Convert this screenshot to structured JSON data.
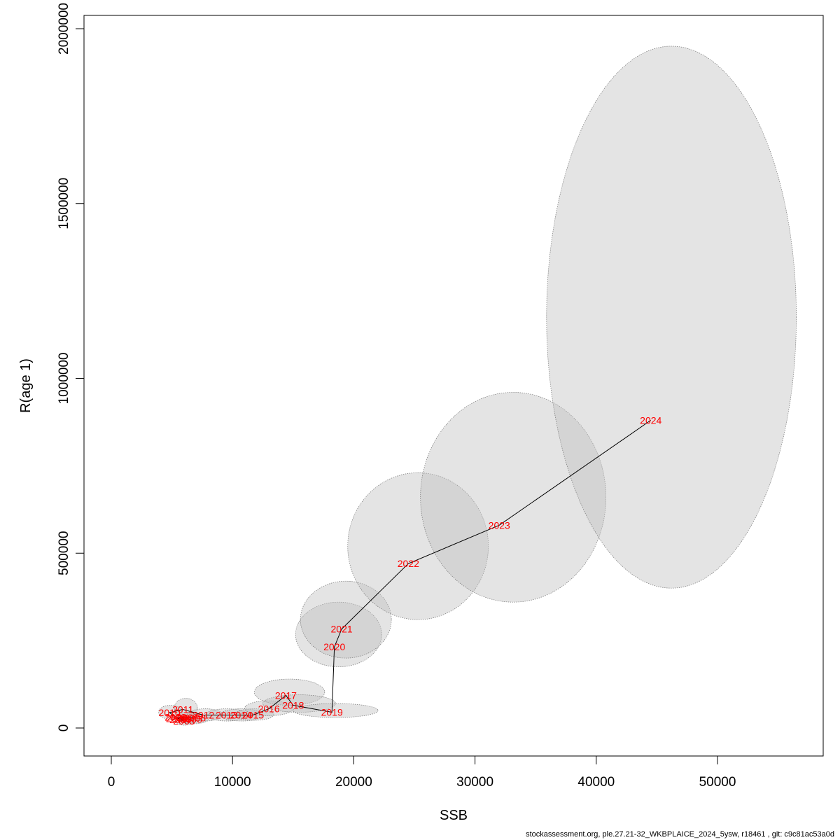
{
  "chart_data": {
    "type": "scatter",
    "title": "",
    "xlabel": "SSB",
    "ylabel": "R(age 1)",
    "xlim": [
      0,
      50000
    ],
    "ylim": [
      0,
      2000000
    ],
    "x_ticks": [
      "0",
      "10000",
      "20000",
      "30000",
      "40000",
      "50000"
    ],
    "y_ticks": [
      "0",
      "500000",
      "1000000",
      "1500000",
      "2000000"
    ],
    "grid": false,
    "legend": "none",
    "line_color": "#000000",
    "label_color": "#ff0000",
    "ellipse_fill": "#bebebe",
    "ellipse_stroke": "#777777",
    "points": [
      {
        "year": "2003",
        "ssb": 6000,
        "r": 20000
      },
      {
        "year": "2004",
        "ssb": 5700,
        "r": 24000
      },
      {
        "year": "2005",
        "ssb": 6600,
        "r": 25000
      },
      {
        "year": "2006",
        "ssb": 5400,
        "r": 27000
      },
      {
        "year": "2007",
        "ssb": 6300,
        "r": 30000
      },
      {
        "year": "2008",
        "ssb": 6900,
        "r": 29000
      },
      {
        "year": "2009",
        "ssb": 5300,
        "r": 31000
      },
      {
        "year": "2010",
        "ssb": 4800,
        "r": 44000
      },
      {
        "year": "2011",
        "ssb": 5900,
        "r": 53000
      },
      {
        "year": "2012",
        "ssb": 7600,
        "r": 37000
      },
      {
        "year": "2013",
        "ssb": 9500,
        "r": 37000
      },
      {
        "year": "2014",
        "ssb": 10700,
        "r": 37000
      },
      {
        "year": "2015",
        "ssb": 11700,
        "r": 37000
      },
      {
        "year": "2016",
        "ssb": 13000,
        "r": 55000
      },
      {
        "year": "2017",
        "ssb": 14400,
        "r": 93000
      },
      {
        "year": "2018",
        "ssb": 15000,
        "r": 65000
      },
      {
        "year": "2019",
        "ssb": 18200,
        "r": 45000
      },
      {
        "year": "2020",
        "ssb": 18400,
        "r": 232000
      },
      {
        "year": "2021",
        "ssb": 19000,
        "r": 283000
      },
      {
        "year": "2022",
        "ssb": 24500,
        "r": 470000
      },
      {
        "year": "2023",
        "ssb": 32000,
        "r": 580000
      },
      {
        "year": "2024",
        "ssb": 44500,
        "r": 880000
      }
    ],
    "confidence_ellipses": [
      {
        "year": "2003",
        "ssb_min": 5200,
        "ssb_max": 6900,
        "r_min": 8000,
        "r_max": 35000
      },
      {
        "year": "2005",
        "ssb_min": 5500,
        "ssb_max": 8000,
        "r_min": 12000,
        "r_max": 40000
      },
      {
        "year": "2007",
        "ssb_min": 5200,
        "ssb_max": 7600,
        "r_min": 15000,
        "r_max": 45000
      },
      {
        "year": "2010",
        "ssb_min": 3900,
        "ssb_max": 5900,
        "r_min": 25000,
        "r_max": 65000
      },
      {
        "year": "2011",
        "ssb_min": 5200,
        "ssb_max": 7100,
        "r_min": 30000,
        "r_max": 85000
      },
      {
        "year": "2012",
        "ssb_min": 6300,
        "ssb_max": 9200,
        "r_min": 20000,
        "r_max": 55000
      },
      {
        "year": "2013",
        "ssb_min": 7800,
        "ssb_max": 11300,
        "r_min": 20000,
        "r_max": 55000
      },
      {
        "year": "2014",
        "ssb_min": 9000,
        "ssb_max": 12500,
        "r_min": 20000,
        "r_max": 55000
      },
      {
        "year": "2015",
        "ssb_min": 10200,
        "ssb_max": 13400,
        "r_min": 22000,
        "r_max": 55000
      },
      {
        "year": "2016",
        "ssb_min": 11000,
        "ssb_max": 15000,
        "r_min": 35000,
        "r_max": 78000
      },
      {
        "year": "2017",
        "ssb_min": 11800,
        "ssb_max": 17600,
        "r_min": 65000,
        "r_max": 140000
      },
      {
        "year": "2018",
        "ssb_min": 12500,
        "ssb_max": 18500,
        "r_min": 45000,
        "r_max": 95000
      },
      {
        "year": "2019",
        "ssb_min": 15000,
        "ssb_max": 22000,
        "r_min": 30000,
        "r_max": 70000
      },
      {
        "year": "2020",
        "ssb_min": 15200,
        "ssb_max": 22300,
        "r_min": 175000,
        "r_max": 360000
      },
      {
        "year": "2021",
        "ssb_min": 15600,
        "ssb_max": 23100,
        "r_min": 200000,
        "r_max": 420000
      },
      {
        "year": "2022",
        "ssb_min": 19500,
        "ssb_max": 31100,
        "r_min": 310000,
        "r_max": 730000
      },
      {
        "year": "2023",
        "ssb_min": 25500,
        "ssb_max": 40800,
        "r_min": 360000,
        "r_max": 960000
      },
      {
        "year": "2024",
        "ssb_min": 35900,
        "ssb_max": 56500,
        "r_min": 400000,
        "r_max": 1950000
      }
    ]
  },
  "footer_text": "stockassessment.org, ple.27.21-32_WKBPLAICE_2024_5ysw, r18461 , git: c9c81ac53a0d"
}
